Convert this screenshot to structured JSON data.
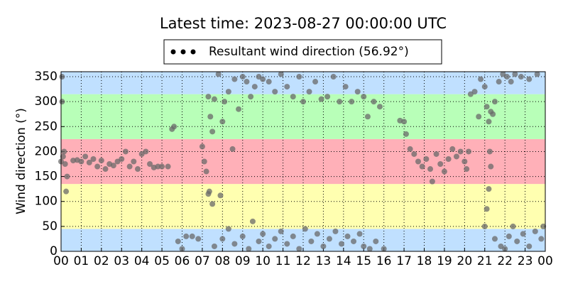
{
  "chart_data": {
    "type": "scatter",
    "title": "Latest time: 2023-08-27 00:00:00 UTC",
    "ylabel": "Wind direction (°)",
    "legend": "top",
    "grid": true,
    "xlim": [
      0,
      24
    ],
    "ylim": [
      0,
      360
    ],
    "xticks": [
      {
        "value": 0,
        "label": "00"
      },
      {
        "value": 1,
        "label": "01"
      },
      {
        "value": 2,
        "label": "02"
      },
      {
        "value": 3,
        "label": "03"
      },
      {
        "value": 4,
        "label": "04"
      },
      {
        "value": 5,
        "label": "05"
      },
      {
        "value": 6,
        "label": "06"
      },
      {
        "value": 7,
        "label": "07"
      },
      {
        "value": 8,
        "label": "08"
      },
      {
        "value": 9,
        "label": "09"
      },
      {
        "value": 10,
        "label": "10"
      },
      {
        "value": 11,
        "label": "11"
      },
      {
        "value": 12,
        "label": "12"
      },
      {
        "value": 13,
        "label": "13"
      },
      {
        "value": 14,
        "label": "14"
      },
      {
        "value": 15,
        "label": "15"
      },
      {
        "value": 16,
        "label": "16"
      },
      {
        "value": 17,
        "label": "17"
      },
      {
        "value": 18,
        "label": "18"
      },
      {
        "value": 19,
        "label": "19"
      },
      {
        "value": 20,
        "label": "20"
      },
      {
        "value": 21,
        "label": "21"
      },
      {
        "value": 22,
        "label": "22"
      },
      {
        "value": 23,
        "label": "23"
      },
      {
        "value": 24,
        "label": "00"
      }
    ],
    "yticks": [
      0,
      50,
      100,
      150,
      200,
      250,
      300,
      350
    ],
    "bands": [
      {
        "from": 0,
        "to": 45,
        "color": "#c0e0ff"
      },
      {
        "from": 45,
        "to": 135,
        "color": "#ffffb0"
      },
      {
        "from": 135,
        "to": 225,
        "color": "#ffb0b8"
      },
      {
        "from": 225,
        "to": 315,
        "color": "#b8ffb8"
      },
      {
        "from": 315,
        "to": 360,
        "color": "#c0e0ff"
      }
    ],
    "series": [
      {
        "name": "Resultant wind direction (56.92°)",
        "color": "#6a6a6a",
        "x": [
          0.0,
          0.1,
          0.15,
          0.2,
          0.3,
          0.25,
          0.05,
          0.05,
          0.6,
          0.8,
          1.0,
          1.2,
          1.4,
          1.6,
          1.8,
          2.0,
          2.2,
          2.4,
          2.6,
          2.8,
          3.0,
          3.2,
          3.4,
          3.6,
          3.8,
          4.0,
          4.2,
          4.4,
          4.6,
          4.8,
          5.0,
          5.3,
          5.5,
          5.6,
          5.8,
          6.0,
          6.2,
          6.5,
          6.8,
          7.0,
          7.1,
          7.2,
          7.3,
          7.35,
          7.5,
          7.3,
          7.4,
          7.5,
          7.6,
          7.8,
          7.9,
          8.0,
          8.1,
          8.3,
          8.5,
          8.6,
          8.8,
          9.0,
          9.2,
          9.4,
          9.6,
          9.8,
          10.0,
          10.3,
          10.6,
          10.9,
          11.2,
          11.5,
          11.8,
          12.0,
          12.3,
          12.6,
          12.9,
          13.2,
          13.5,
          13.8,
          14.1,
          14.4,
          14.7,
          15.0,
          15.2,
          15.5,
          15.8,
          7.6,
          8.0,
          8.3,
          8.6,
          9.0,
          9.3,
          9.5,
          9.8,
          10.0,
          10.3,
          10.6,
          10.9,
          11.2,
          11.5,
          11.8,
          12.1,
          12.4,
          12.7,
          13.0,
          13.3,
          13.6,
          13.9,
          14.2,
          14.5,
          14.8,
          15.0,
          15.3,
          15.6,
          16.0,
          16.8,
          17.0,
          17.1,
          17.3,
          17.5,
          17.7,
          17.9,
          18.1,
          18.3,
          18.4,
          18.6,
          18.8,
          19.0,
          19.2,
          19.4,
          19.6,
          19.8,
          20.0,
          20.1,
          20.2,
          20.3,
          20.5,
          20.7,
          20.8,
          21.0,
          21.1,
          21.2,
          21.25,
          21.3,
          21.2,
          21.1,
          21.0,
          21.3,
          21.4,
          21.5,
          21.7,
          21.9,
          22.1,
          22.3,
          22.5,
          22.8,
          23.2,
          23.6,
          21.5,
          21.8,
          22.0,
          22.2,
          22.4,
          22.6,
          22.9,
          23.2,
          23.5,
          23.8,
          23.9
        ],
        "values": [
          180,
          190,
          200,
          175,
          150,
          120,
          300,
          350,
          182,
          183,
          180,
          190,
          178,
          185,
          170,
          182,
          165,
          175,
          172,
          180,
          185,
          200,
          170,
          180,
          165,
          195,
          200,
          175,
          168,
          170,
          170,
          170,
          245,
          250,
          20,
          5,
          30,
          30,
          25,
          210,
          180,
          160,
          115,
          120,
          95,
          310,
          270,
          240,
          305,
          355,
          112,
          260,
          300,
          320,
          205,
          345,
          285,
          350,
          340,
          310,
          330,
          350,
          345,
          340,
          320,
          355,
          330,
          310,
          350,
          300,
          320,
          340,
          305,
          310,
          350,
          300,
          330,
          300,
          320,
          310,
          270,
          300,
          290,
          10,
          25,
          45,
          15,
          30,
          5,
          60,
          20,
          35,
          10,
          25,
          40,
          15,
          30,
          5,
          45,
          20,
          35,
          10,
          25,
          40,
          15,
          30,
          20,
          35,
          10,
          5,
          20,
          5,
          262,
          260,
          235,
          205,
          195,
          180,
          170,
          185,
          165,
          140,
          195,
          175,
          160,
          185,
          205,
          190,
          200,
          180,
          165,
          200,
          315,
          320,
          270,
          345,
          330,
          290,
          260,
          200,
          170,
          125,
          85,
          50,
          280,
          275,
          300,
          340,
          355,
          350,
          340,
          355,
          350,
          345,
          355,
          25,
          10,
          5,
          30,
          50,
          20,
          35,
          10,
          40,
          25,
          50
        ]
      }
    ]
  }
}
